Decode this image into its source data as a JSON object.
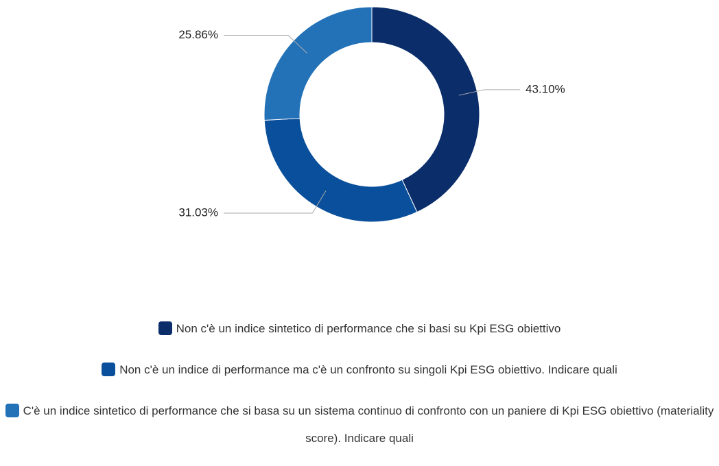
{
  "chart_data": {
    "type": "donut",
    "categories": [
      "Non c'è un indice sintetico di performance che si basi su Kpi ESG obiettivo",
      "Non c'è un indice di performance ma c'è un confronto su singoli Kpi ESG obiettivo. Indicare quali",
      "C'è un indice sintetico di performance che si basa su un sistema continuo di confronto con un paniere di Kpi ESG obiettivo (materiality score). Indicare quali"
    ],
    "values": [
      43.1,
      31.03,
      25.86
    ],
    "value_labels": [
      "43.10%",
      "31.03%",
      "25.86%"
    ],
    "colors": [
      "#0b2e6b",
      "#0a4f9b",
      "#2372b8"
    ],
    "legend": "bottom"
  }
}
